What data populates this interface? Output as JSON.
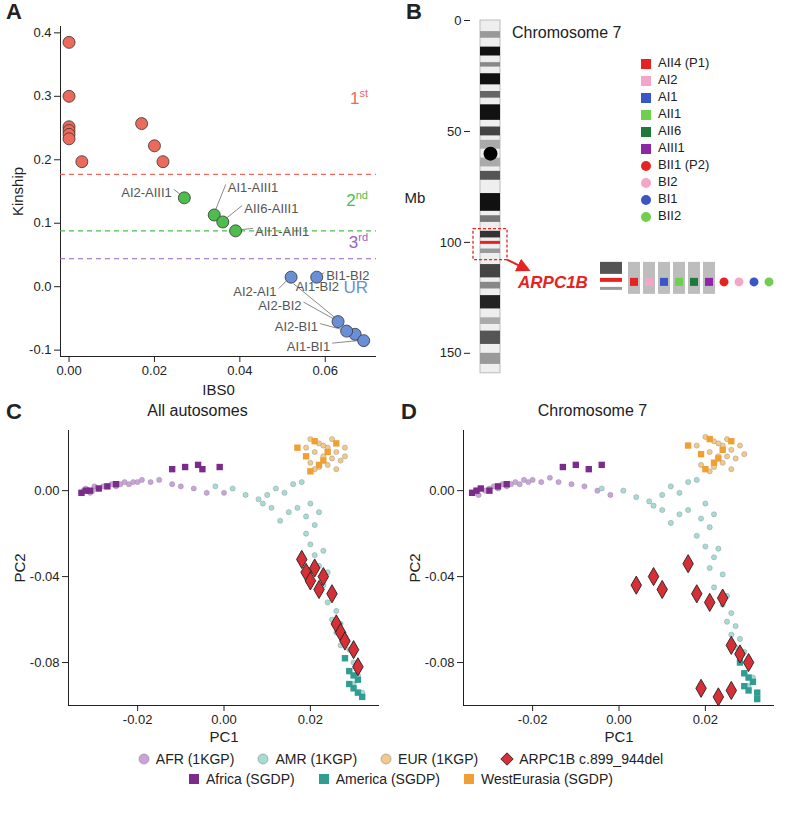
{
  "chart_data": [
    {
      "panel": "A",
      "type": "scatter",
      "x_label": "IBS0",
      "y_label": "Kinship",
      "xlim": [
        -0.002,
        0.072
      ],
      "xticks": [
        {
          "value": 0,
          "label": "0.00"
        },
        0.02,
        0.04,
        0.06
      ],
      "ylim": [
        -0.11,
        0.41
      ],
      "yticks": [
        -0.1,
        {
          "value": 0,
          "label": "0.0"
        },
        0.1,
        0.2,
        0.3,
        0.4
      ],
      "series": [
        {
          "name": "1st",
          "color": "#ec6a5c",
          "threshold": 0.177,
          "x": [
            0,
            0,
            0,
            0,
            0,
            0,
            0.003,
            0.017,
            0.02,
            0.022
          ],
          "y": [
            0.385,
            0.3,
            0.252,
            0.246,
            0.24,
            0.233,
            0.197,
            0.257,
            0.222,
            0.197
          ],
          "labels": [
            null,
            null,
            null,
            null,
            null,
            null,
            null,
            null,
            null,
            null
          ]
        },
        {
          "name": "2nd",
          "color": "#4dbd4d",
          "threshold": 0.088,
          "x": [
            0.027,
            0.034,
            0.036,
            0.039
          ],
          "y": [
            0.14,
            0.113,
            0.102,
            0.088
          ],
          "labels": [
            "AI2-AIII1",
            "AI1-AIII1",
            "AII6-AIII1",
            "AII1-AIII1"
          ]
        },
        {
          "name": "3rd",
          "color": "#9c5fc0",
          "threshold": 0.044,
          "x": [],
          "y": [],
          "labels": []
        },
        {
          "name": "UR",
          "color": "#6a8fd6",
          "x": [
            0.052,
            0.058,
            0.063,
            0.067,
            0.065,
            0.069
          ],
          "y": [
            0.015,
            0.015,
            -0.055,
            -0.075,
            -0.07,
            -0.085
          ],
          "labels": [
            "AI2-AI1",
            "BI1-BI2",
            "AI2-BI2",
            "AI1-BI2",
            "AI2-BI1",
            "AI1-BI1"
          ]
        }
      ]
    },
    {
      "panel": "B",
      "type": "ideogram",
      "title": "Chromosome 7",
      "y_label": "Mb",
      "ylim": [
        0,
        160
      ],
      "yticks": [
        0,
        50,
        100,
        150
      ],
      "length": 159,
      "centromere": 60,
      "bands": [
        {
          "start": 5,
          "end": 8,
          "shade": "#999999"
        },
        {
          "start": 12,
          "end": 16,
          "shade": "#111111"
        },
        {
          "start": 19,
          "end": 21,
          "shade": "#888888"
        },
        {
          "start": 24,
          "end": 29,
          "shade": "#111111"
        },
        {
          "start": 32,
          "end": 35,
          "shade": "#666666"
        },
        {
          "start": 38,
          "end": 45,
          "shade": "#111111"
        },
        {
          "start": 48,
          "end": 52,
          "shade": "#444444"
        },
        {
          "start": 54,
          "end": 58,
          "shade": "#aaaaaa"
        },
        {
          "start": 62,
          "end": 66,
          "shade": "#aaaaaa"
        },
        {
          "start": 68,
          "end": 72,
          "shade": "#555555"
        },
        {
          "start": 78,
          "end": 86,
          "shade": "#111111"
        },
        {
          "start": 88,
          "end": 91,
          "shade": "#777777"
        },
        {
          "start": 95,
          "end": 98,
          "shade": "#333333"
        },
        {
          "start": 103,
          "end": 105,
          "shade": "#999999"
        },
        {
          "start": 110,
          "end": 116,
          "shade": "#444444"
        },
        {
          "start": 118,
          "end": 121,
          "shade": "#888888"
        },
        {
          "start": 124,
          "end": 130,
          "shade": "#222222"
        },
        {
          "start": 134,
          "end": 137,
          "shade": "#aaaaaa"
        },
        {
          "start": 140,
          "end": 146,
          "shade": "#555555"
        },
        {
          "start": 150,
          "end": 155,
          "shade": "#999999"
        }
      ],
      "highlight": {
        "start": 94,
        "end": 108
      },
      "gene": {
        "name": "ARPC1B",
        "position": 100
      },
      "series": [
        {
          "name": "AII4 (P1)",
          "color": "#e52421",
          "marker": "square"
        },
        {
          "name": "AI2",
          "color": "#f4a6c8",
          "marker": "square"
        },
        {
          "name": "AI1",
          "color": "#3a55c6",
          "marker": "square"
        },
        {
          "name": "AII1",
          "color": "#6fcf4f",
          "marker": "square"
        },
        {
          "name": "AII6",
          "color": "#1f7a3a",
          "marker": "square"
        },
        {
          "name": "AIII1",
          "color": "#8e26a8",
          "marker": "square"
        },
        {
          "name": "BII1 (P2)",
          "color": "#e52421",
          "marker": "circle"
        },
        {
          "name": "BI2",
          "color": "#f4a6c8",
          "marker": "circle"
        },
        {
          "name": "BI1",
          "color": "#3a55c6",
          "marker": "circle"
        },
        {
          "name": "BII2",
          "color": "#6fcf4f",
          "marker": "circle"
        }
      ]
    },
    {
      "panel": "C",
      "type": "scatter",
      "title": "All autosomes",
      "x_label": "PC1",
      "y_label": "PC2",
      "xlim": [
        -0.036,
        0.036
      ],
      "xticks": [
        -0.02,
        {
          "value": 0,
          "label": "0.00"
        },
        0.02
      ],
      "ylim": [
        -0.1,
        0.028
      ],
      "yticks": [
        -0.08,
        -0.04,
        {
          "value": 0,
          "label": "0.00"
        }
      ],
      "legend": "bottom",
      "series": [
        {
          "name": "AFR (1KGP)",
          "color": "#c9a3d9",
          "marker": "circle",
          "x": [
            -0.033,
            -0.0325,
            -0.032,
            -0.031,
            -0.0305,
            -0.03,
            -0.029,
            -0.028,
            -0.027,
            -0.026,
            -0.025,
            -0.024,
            -0.023,
            -0.022,
            -0.021,
            -0.02,
            -0.019,
            -0.017,
            -0.015,
            -0.012,
            -0.01,
            -0.007,
            -0.004,
            0.0
          ],
          "y": [
            -0.001,
            0.0,
            0.001,
            -0.001,
            0.0,
            0.002,
            0.001,
            0.002,
            0.002,
            0.003,
            0.002,
            0.003,
            0.004,
            0.003,
            0.004,
            0.004,
            0.005,
            0.004,
            0.005,
            0.003,
            0.002,
            0.001,
            -0.001,
            -0.001
          ]
        },
        {
          "name": "AMR (1KGP)",
          "color": "#a5dcd6",
          "marker": "circle",
          "x": [
            0.005,
            0.008,
            0.01,
            0.012,
            0.014,
            0.016,
            0.018,
            0.017,
            0.019,
            0.02,
            0.021,
            0.022,
            0.019,
            0.02,
            0.021,
            0.023,
            0.022,
            0.024,
            0.023,
            0.025,
            0.024,
            0.026,
            0.025,
            0.027,
            0.026,
            0.028,
            0.027,
            0.029,
            0.028,
            0.03,
            0.029,
            0.031,
            0.03,
            0.032,
            -0.002,
            0.002,
            0.015,
            0.013,
            0.011,
            0.009
          ],
          "y": [
            -0.002,
            -0.004,
            -0.002,
            0.001,
            -0.001,
            0.003,
            0.004,
            -0.008,
            -0.012,
            -0.006,
            -0.016,
            -0.01,
            -0.02,
            -0.025,
            -0.03,
            -0.028,
            -0.035,
            -0.038,
            -0.044,
            -0.048,
            -0.052,
            -0.056,
            -0.06,
            -0.062,
            -0.066,
            -0.068,
            -0.072,
            -0.074,
            -0.078,
            -0.08,
            -0.084,
            -0.086,
            -0.09,
            -0.094,
            0.002,
            0.001,
            -0.01,
            -0.014,
            -0.008,
            -0.006
          ]
        },
        {
          "name": "EUR (1KGP)",
          "color": "#f3c98b",
          "marker": "circle",
          "x": [
            0.019,
            0.02,
            0.021,
            0.022,
            0.023,
            0.024,
            0.025,
            0.026,
            0.027,
            0.028,
            0.02,
            0.022,
            0.024,
            0.026,
            0.028,
            0.023,
            0.025,
            0.021
          ],
          "y": [
            0.02,
            0.024,
            0.018,
            0.022,
            0.016,
            0.02,
            0.024,
            0.018,
            0.014,
            0.02,
            0.013,
            0.011,
            0.012,
            0.01,
            0.016,
            0.021,
            0.015,
            0.01
          ]
        },
        {
          "name": "ARPC1B c.899_944del",
          "color": "#d62f35",
          "marker": "diamond",
          "x": [
            0.018,
            0.019,
            0.021,
            0.02,
            0.023,
            0.022,
            0.025,
            0.026,
            0.027,
            0.028,
            0.03,
            0.031
          ],
          "y": [
            -0.032,
            -0.038,
            -0.036,
            -0.042,
            -0.04,
            -0.046,
            -0.048,
            -0.062,
            -0.066,
            -0.07,
            -0.074,
            -0.082
          ]
        },
        {
          "name": "Africa (SGDP)",
          "color": "#7a2b8c",
          "marker": "square",
          "x": [
            -0.033,
            -0.032,
            -0.031,
            -0.029,
            -0.027,
            -0.025,
            -0.012,
            -0.009,
            -0.006,
            -0.005,
            -0.001
          ],
          "y": [
            -0.001,
            0.0,
            0.0,
            0.001,
            0.002,
            0.003,
            0.01,
            0.011,
            0.012,
            0.01,
            0.011
          ]
        },
        {
          "name": "America (SGDP)",
          "color": "#2f9d93",
          "marker": "square",
          "x": [
            0.028,
            0.029,
            0.03,
            0.031,
            0.03,
            0.031,
            0.032,
            0.029
          ],
          "y": [
            -0.078,
            -0.084,
            -0.086,
            -0.088,
            -0.092,
            -0.094,
            -0.096,
            -0.09
          ]
        },
        {
          "name": "WestEurasia (SGDP)",
          "color": "#f0a032",
          "marker": "square",
          "x": [
            0.017,
            0.019,
            0.021,
            0.022,
            0.024,
            0.026,
            0.02,
            0.023
          ],
          "y": [
            0.02,
            0.016,
            0.023,
            0.012,
            0.018,
            0.022,
            0.009,
            0.014
          ]
        }
      ]
    },
    {
      "panel": "D",
      "type": "scatter",
      "title": "Chromosome 7",
      "x_label": "PC1",
      "y_label": "PC2",
      "xlim": [
        -0.036,
        0.036
      ],
      "xticks": [
        -0.02,
        {
          "value": 0,
          "label": "0.00"
        },
        0.02
      ],
      "ylim": [
        -0.1,
        0.028
      ],
      "yticks": [
        -0.08,
        -0.04,
        {
          "value": 0,
          "label": "0.00"
        }
      ],
      "legend": "bottom",
      "series": [
        {
          "name": "AFR (1KGP)",
          "color": "#c9a3d9",
          "marker": "circle",
          "x": [
            -0.034,
            -0.033,
            -0.0325,
            -0.032,
            -0.031,
            -0.03,
            -0.029,
            -0.028,
            -0.027,
            -0.026,
            -0.025,
            -0.024,
            -0.023,
            -0.022,
            -0.021,
            -0.02,
            -0.018,
            -0.016,
            -0.014,
            -0.011,
            -0.008,
            -0.005,
            -0.002
          ],
          "y": [
            -0.001,
            0.0,
            -0.002,
            0.001,
            0.0,
            0.001,
            0.002,
            0.001,
            0.003,
            0.002,
            0.003,
            0.004,
            0.003,
            0.005,
            0.004,
            0.005,
            0.004,
            0.006,
            0.004,
            0.003,
            0.002,
            0.0,
            -0.002
          ]
        },
        {
          "name": "AMR (1KGP)",
          "color": "#a5dcd6",
          "marker": "circle",
          "x": [
            0.004,
            0.007,
            0.01,
            0.012,
            0.014,
            0.016,
            0.018,
            0.016,
            0.019,
            0.02,
            0.021,
            0.022,
            0.018,
            0.02,
            0.022,
            0.023,
            0.021,
            0.024,
            0.022,
            0.025,
            0.024,
            0.026,
            0.025,
            0.027,
            0.026,
            0.028,
            0.027,
            0.029,
            0.028,
            0.03,
            0.029,
            0.031,
            0.03,
            0.032,
            -0.004,
            0.001,
            0.014,
            0.012,
            0.01,
            0.008
          ],
          "y": [
            -0.003,
            -0.005,
            -0.002,
            0.002,
            -0.001,
            0.004,
            0.005,
            -0.009,
            -0.013,
            -0.006,
            -0.017,
            -0.011,
            -0.021,
            -0.026,
            -0.031,
            -0.027,
            -0.036,
            -0.039,
            -0.045,
            -0.049,
            -0.053,
            -0.057,
            -0.061,
            -0.063,
            -0.067,
            -0.069,
            -0.073,
            -0.075,
            -0.079,
            -0.081,
            -0.085,
            -0.087,
            -0.091,
            -0.095,
            0.001,
            0.0,
            -0.011,
            -0.015,
            -0.009,
            -0.007
          ]
        },
        {
          "name": "EUR (1KGP)",
          "color": "#f3c98b",
          "marker": "circle",
          "x": [
            0.018,
            0.02,
            0.021,
            0.022,
            0.023,
            0.024,
            0.025,
            0.026,
            0.027,
            0.028,
            0.019,
            0.022,
            0.024,
            0.026,
            0.029,
            0.023,
            0.025,
            0.021
          ],
          "y": [
            0.021,
            0.025,
            0.018,
            0.023,
            0.016,
            0.021,
            0.024,
            0.019,
            0.015,
            0.021,
            0.012,
            0.011,
            0.013,
            0.01,
            0.017,
            0.022,
            0.016,
            0.009
          ]
        },
        {
          "name": "ARPC1B c.899_944del",
          "color": "#d62f35",
          "marker": "diamond",
          "x": [
            0.004,
            0.008,
            0.01,
            0.016,
            0.018,
            0.021,
            0.024,
            0.026,
            0.028,
            0.03,
            0.019,
            0.023,
            0.026
          ],
          "y": [
            -0.044,
            -0.04,
            -0.046,
            -0.034,
            -0.048,
            -0.052,
            -0.05,
            -0.072,
            -0.076,
            -0.08,
            -0.092,
            -0.096,
            -0.093
          ]
        },
        {
          "name": "Africa (SGDP)",
          "color": "#7a2b8c",
          "marker": "square",
          "x": [
            -0.034,
            -0.033,
            -0.032,
            -0.03,
            -0.028,
            -0.026,
            -0.013,
            -0.01,
            -0.007,
            -0.004
          ],
          "y": [
            -0.001,
            0.0,
            0.001,
            0.0,
            0.002,
            0.003,
            0.011,
            0.012,
            0.01,
            0.012
          ]
        },
        {
          "name": "America (SGDP)",
          "color": "#2f9d93",
          "marker": "square",
          "x": [
            0.028,
            0.029,
            0.03,
            0.031,
            0.03,
            0.032,
            0.032,
            0.029
          ],
          "y": [
            -0.08,
            -0.085,
            -0.087,
            -0.089,
            -0.093,
            -0.094,
            -0.097,
            -0.091
          ]
        },
        {
          "name": "WestEurasia (SGDP)",
          "color": "#f0a032",
          "marker": "square",
          "x": [
            0.016,
            0.019,
            0.021,
            0.022,
            0.024,
            0.026,
            0.02,
            0.023
          ],
          "y": [
            0.021,
            0.017,
            0.024,
            0.013,
            0.019,
            0.023,
            0.01,
            0.015
          ]
        }
      ]
    }
  ]
}
